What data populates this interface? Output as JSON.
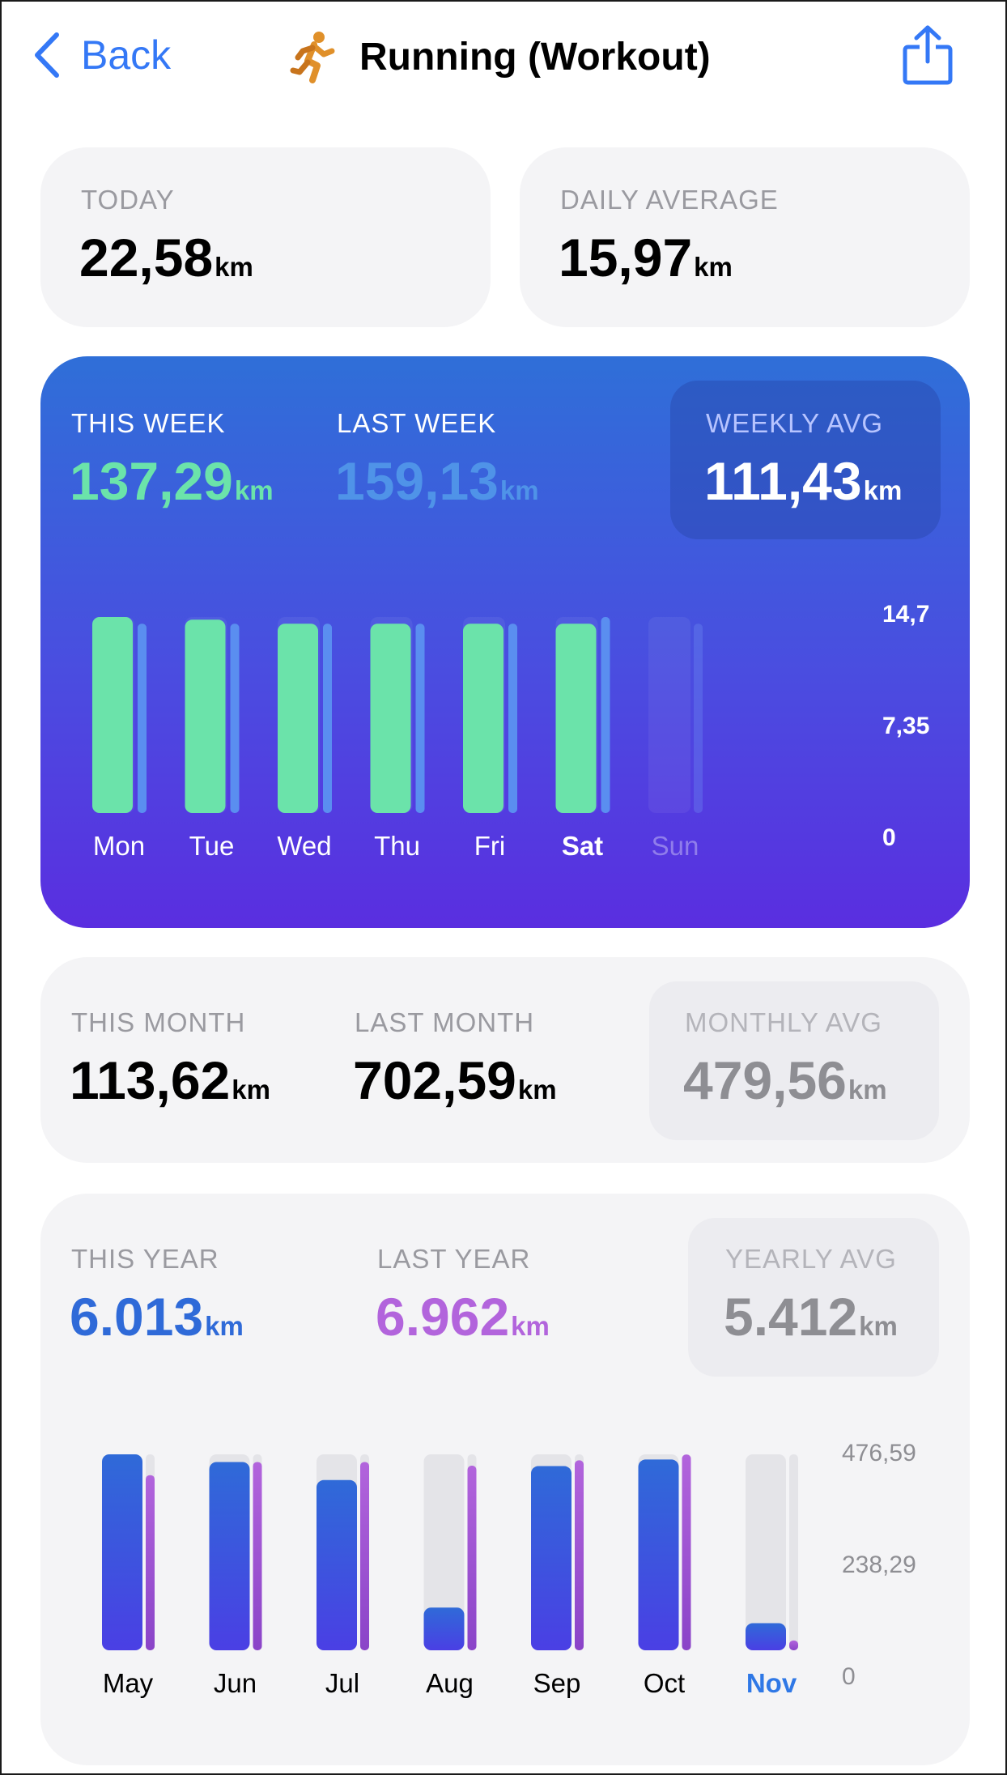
{
  "header": {
    "back_label": "Back",
    "title": "Running (Workout)"
  },
  "today": {
    "label": "TODAY",
    "value": "22,58",
    "unit": "km"
  },
  "daily_average": {
    "label": "DAILY AVERAGE",
    "value": "15,97",
    "unit": "km"
  },
  "week": {
    "this_label": "THIS WEEK",
    "this_value": "137,29",
    "this_unit": "km",
    "last_label": "LAST WEEK",
    "last_value": "159,13",
    "last_unit": "km",
    "avg_label": "WEEKLY AVG",
    "avg_value": "111,43",
    "avg_unit": "km",
    "colors": {
      "this": "#6be3aa",
      "last": "#5a8ef0",
      "this_value_text": "#6be3aa",
      "last_value_text": "#4f93e8"
    }
  },
  "month": {
    "this_label": "THIS MONTH",
    "this_value": "113,62",
    "this_unit": "km",
    "last_label": "LAST MONTH",
    "last_value": "702,59",
    "last_unit": "km",
    "avg_label": "MONTHLY AVG",
    "avg_value": "479,56",
    "avg_unit": "km"
  },
  "year": {
    "this_label": "THIS YEAR",
    "this_value": "6.013",
    "this_unit": "km",
    "last_label": "LAST YEAR",
    "last_value": "6.962",
    "last_unit": "km",
    "avg_label": "YEARLY AVG",
    "avg_value": "5.412",
    "avg_unit": "km",
    "colors": {
      "this": "#2f6ad8",
      "last": "#b264dc"
    }
  },
  "chart_data": [
    {
      "type": "bar",
      "categories": [
        "Mon",
        "Tue",
        "Wed",
        "Thu",
        "Fri",
        "Sat",
        "Sun"
      ],
      "highlight": "Sat",
      "series": [
        {
          "values": [
            14.7,
            14.5,
            14.2,
            14.2,
            14.2,
            14.2,
            0
          ]
        },
        {
          "values": [
            14.2,
            14.2,
            14.2,
            14.2,
            14.2,
            14.7,
            14.2
          ]
        }
      ],
      "ylim": [
        0,
        14.7
      ],
      "yticks": [
        "14,7",
        "7,35",
        "0"
      ]
    },
    {
      "type": "bar",
      "categories": [
        "May",
        "Jun",
        "Jul",
        "Aug",
        "Sep",
        "Oct",
        "Nov"
      ],
      "highlight": "Nov",
      "series": [
        {
          "values": [
            476.59,
            458,
            414,
            104,
            448,
            464,
            66
          ]
        },
        {
          "values": [
            426,
            458,
            458,
            449,
            462,
            476,
            24
          ]
        }
      ],
      "ylim": [
        0,
        476.59
      ],
      "yticks": [
        "476,59",
        "238,29",
        "0"
      ]
    }
  ]
}
